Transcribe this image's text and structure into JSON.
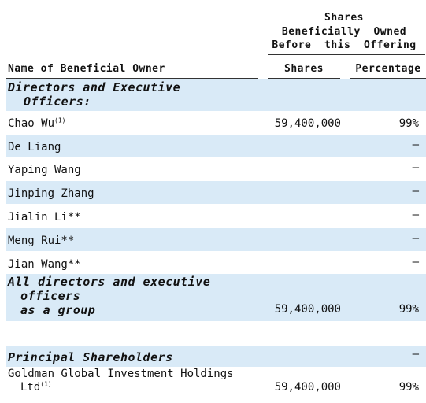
{
  "header": {
    "group_line1": "Shares",
    "group_line2": "Beneficially  Owned",
    "group_line3": "Before  this  Offering",
    "col_name": "Name of Beneficial Owner",
    "col_shares": "Shares",
    "col_pct": "Percentage"
  },
  "sections": {
    "directors_line1": "Directors and Executive",
    "directors_line2": "Officers:",
    "group_line1": "All directors and executive",
    "group_line2": "officers",
    "group_line3": "as a group",
    "principal": "Principal Shareholders",
    "principal_pct": "—"
  },
  "rows": [
    {
      "name": "Chao Wu",
      "note": "(1)",
      "shares": "59,400,000",
      "pct": "99%"
    },
    {
      "name": "De Liang",
      "shares": "",
      "pct": "—"
    },
    {
      "name": "Yaping Wang",
      "shares": "",
      "pct": "—"
    },
    {
      "name": "Jinping Zhang",
      "shares": "",
      "pct": "—"
    },
    {
      "name": "Jialin Li**",
      "shares": "",
      "pct": "—"
    },
    {
      "name": "Meng Rui**",
      "shares": "",
      "pct": "—"
    },
    {
      "name": "Jian Wang**",
      "shares": "",
      "pct": "—"
    }
  ],
  "group_total": {
    "shares": "59,400,000",
    "pct": "99%"
  },
  "goldman": {
    "line1": "Goldman Global Investment Holdings",
    "line2": "Ltd",
    "note": "(1)",
    "shares": "59,400,000",
    "pct": "99%"
  }
}
